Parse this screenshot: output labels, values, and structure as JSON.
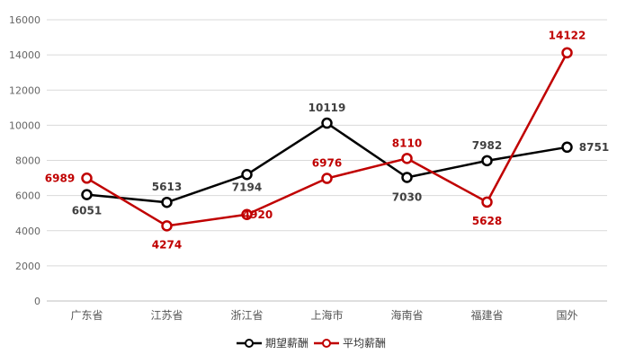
{
  "chart_data": {
    "type": "line",
    "categories": [
      "广东省",
      "江苏省",
      "浙江省",
      "上海市",
      "海南省",
      "福建省",
      "国外"
    ],
    "series": [
      {
        "name": "期望薪酬",
        "color": "#000000",
        "values": [
          6051,
          5613,
          7194,
          10119,
          7030,
          7982,
          8751
        ]
      },
      {
        "name": "平均薪酬",
        "color": "#c00000",
        "values": [
          6989,
          4274,
          4920,
          6976,
          8110,
          5628,
          14122
        ]
      }
    ],
    "ylim": [
      0,
      16000
    ],
    "yticks": [
      0,
      2000,
      4000,
      6000,
      8000,
      10000,
      12000,
      14000,
      16000
    ],
    "grid": true,
    "legend": "bottom-center",
    "title": "",
    "xlabel": "",
    "ylabel": ""
  }
}
